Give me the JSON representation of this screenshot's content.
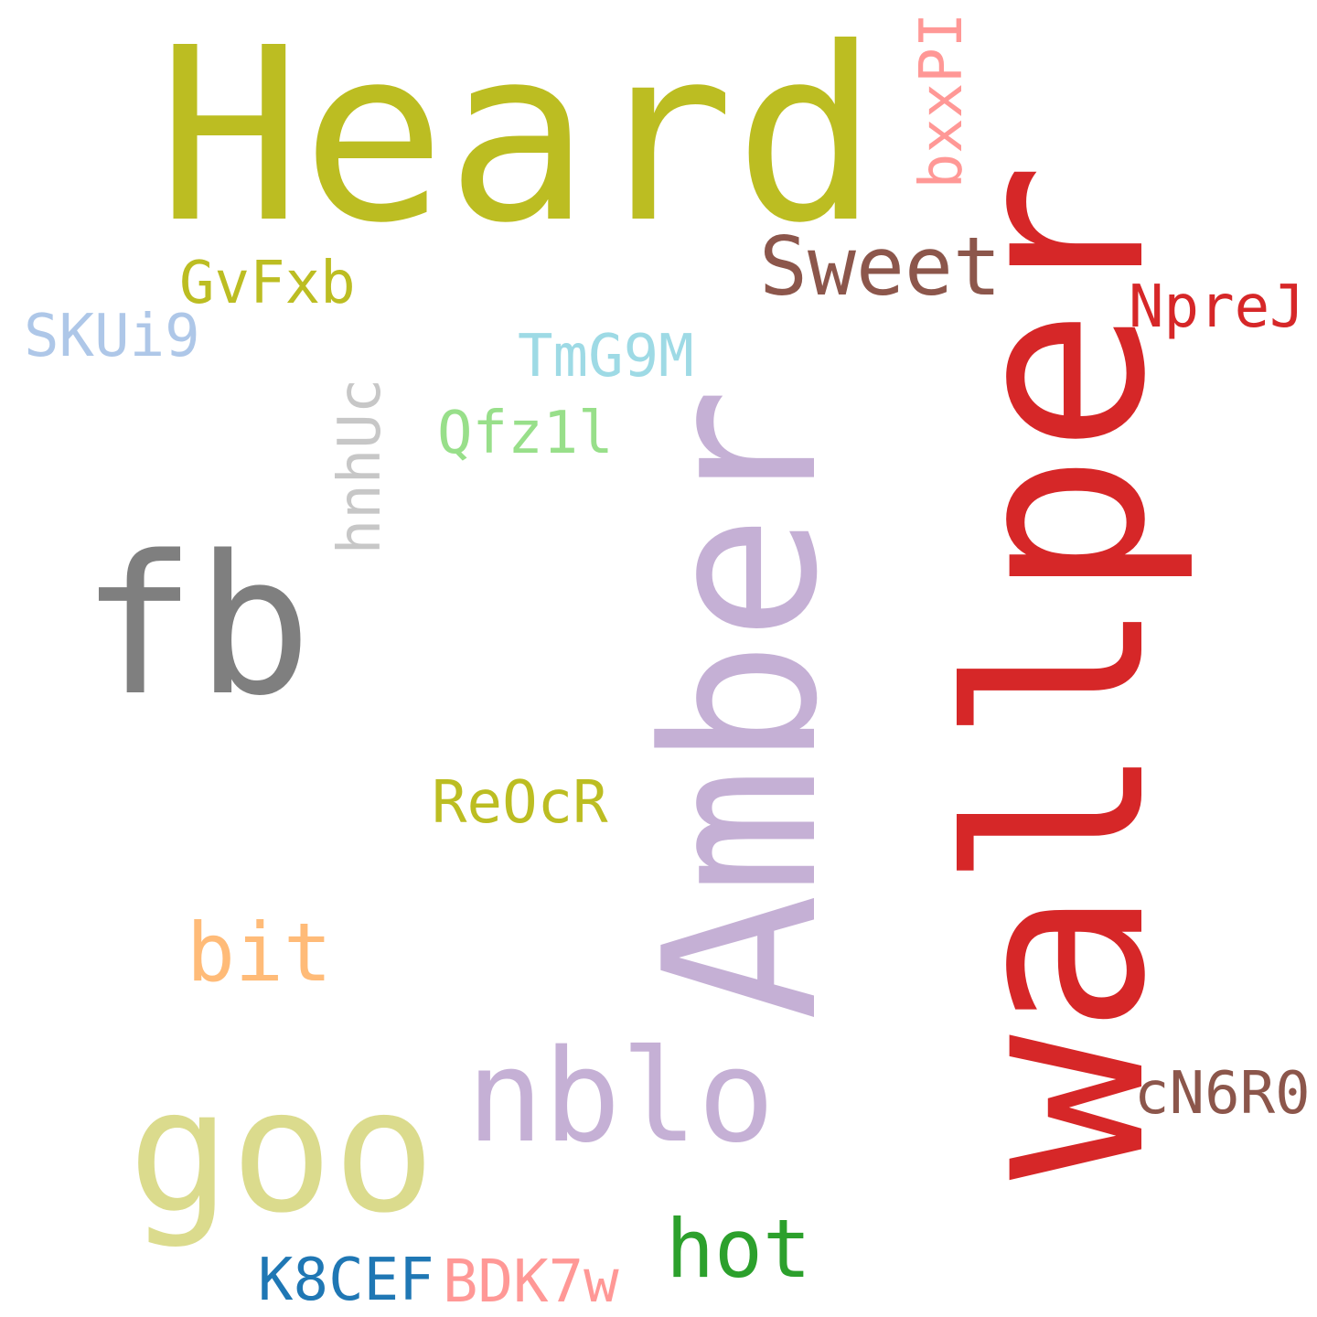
{
  "words": {
    "heard": {
      "text": "Heard",
      "color": "#bcbd22"
    },
    "wallper": {
      "text": "wallper",
      "color": "#d62728"
    },
    "amber": {
      "text": "Amber",
      "color": "#c5b0d5"
    },
    "fb": {
      "text": "fb",
      "color": "#7f7f7f"
    },
    "goo": {
      "text": "goo",
      "color": "#dbdb8d"
    },
    "nblo": {
      "text": "nblo",
      "color": "#c5b0d5"
    },
    "sweet": {
      "text": "Sweet",
      "color": "#8c564b"
    },
    "bit": {
      "text": "bit",
      "color": "#ffbb78"
    },
    "hot": {
      "text": "hot",
      "color": "#2ca02c"
    },
    "gvfxb": {
      "text": "GvFxb",
      "color": "#bcbd22"
    },
    "skui9": {
      "text": "SKUi9",
      "color": "#aec7e8"
    },
    "tmg9m": {
      "text": "TmG9M",
      "color": "#9edae5"
    },
    "qfz1l": {
      "text": "Qfz1l",
      "color": "#98df8a"
    },
    "hnhuc": {
      "text": "hnhUc",
      "color": "#c7c7c7"
    },
    "reocr": {
      "text": "ReOcR",
      "color": "#bcbd22"
    },
    "nprej": {
      "text": "NpreJ",
      "color": "#d62728"
    },
    "bxxpi": {
      "text": "bxxPI",
      "color": "#ff9896"
    },
    "cn6r0": {
      "text": "cN6R0",
      "color": "#8c564b"
    },
    "k8cef": {
      "text": "K8CEF",
      "color": "#1f77b4"
    },
    "bdk7w": {
      "text": "BDK7w",
      "color": "#ff9896"
    }
  }
}
